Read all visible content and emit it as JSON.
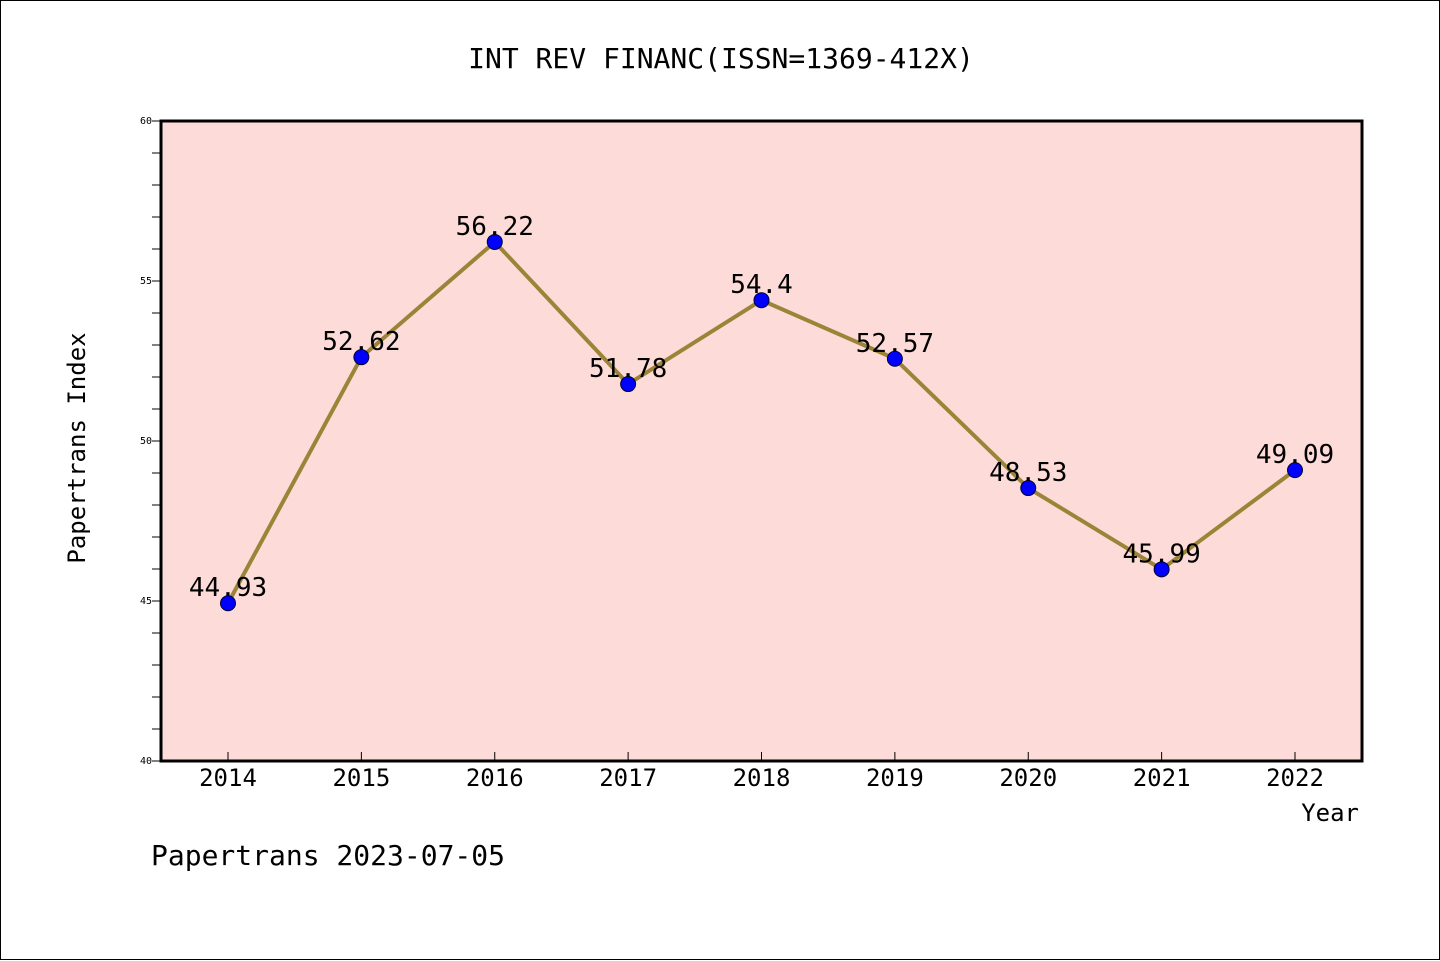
{
  "chart_data": {
    "type": "line",
    "title": "INT REV FINANC(ISSN=1369-412X)",
    "xlabel": "Year",
    "ylabel": "Papertrans Index",
    "categories": [
      "2014",
      "2015",
      "2016",
      "2017",
      "2018",
      "2019",
      "2020",
      "2021",
      "2022"
    ],
    "series": [
      {
        "values": [
          44.93,
          52.62,
          56.22,
          51.78,
          54.4,
          52.57,
          48.53,
          45.99,
          49.09
        ],
        "labels": [
          "44.93",
          "52.62",
          "56.22",
          "51.78",
          "54.4",
          "52.57",
          "48.53",
          "45.99",
          "49.09"
        ]
      }
    ],
    "ylim": [
      40,
      60
    ],
    "yticks": [
      "40",
      "45",
      "50",
      "55",
      "60"
    ],
    "grid": false,
    "colors": {
      "plot_background": "#fddbd8",
      "line": "#9b8437",
      "marker": "#0000ff"
    }
  },
  "footer": "Papertrans 2023-07-05"
}
